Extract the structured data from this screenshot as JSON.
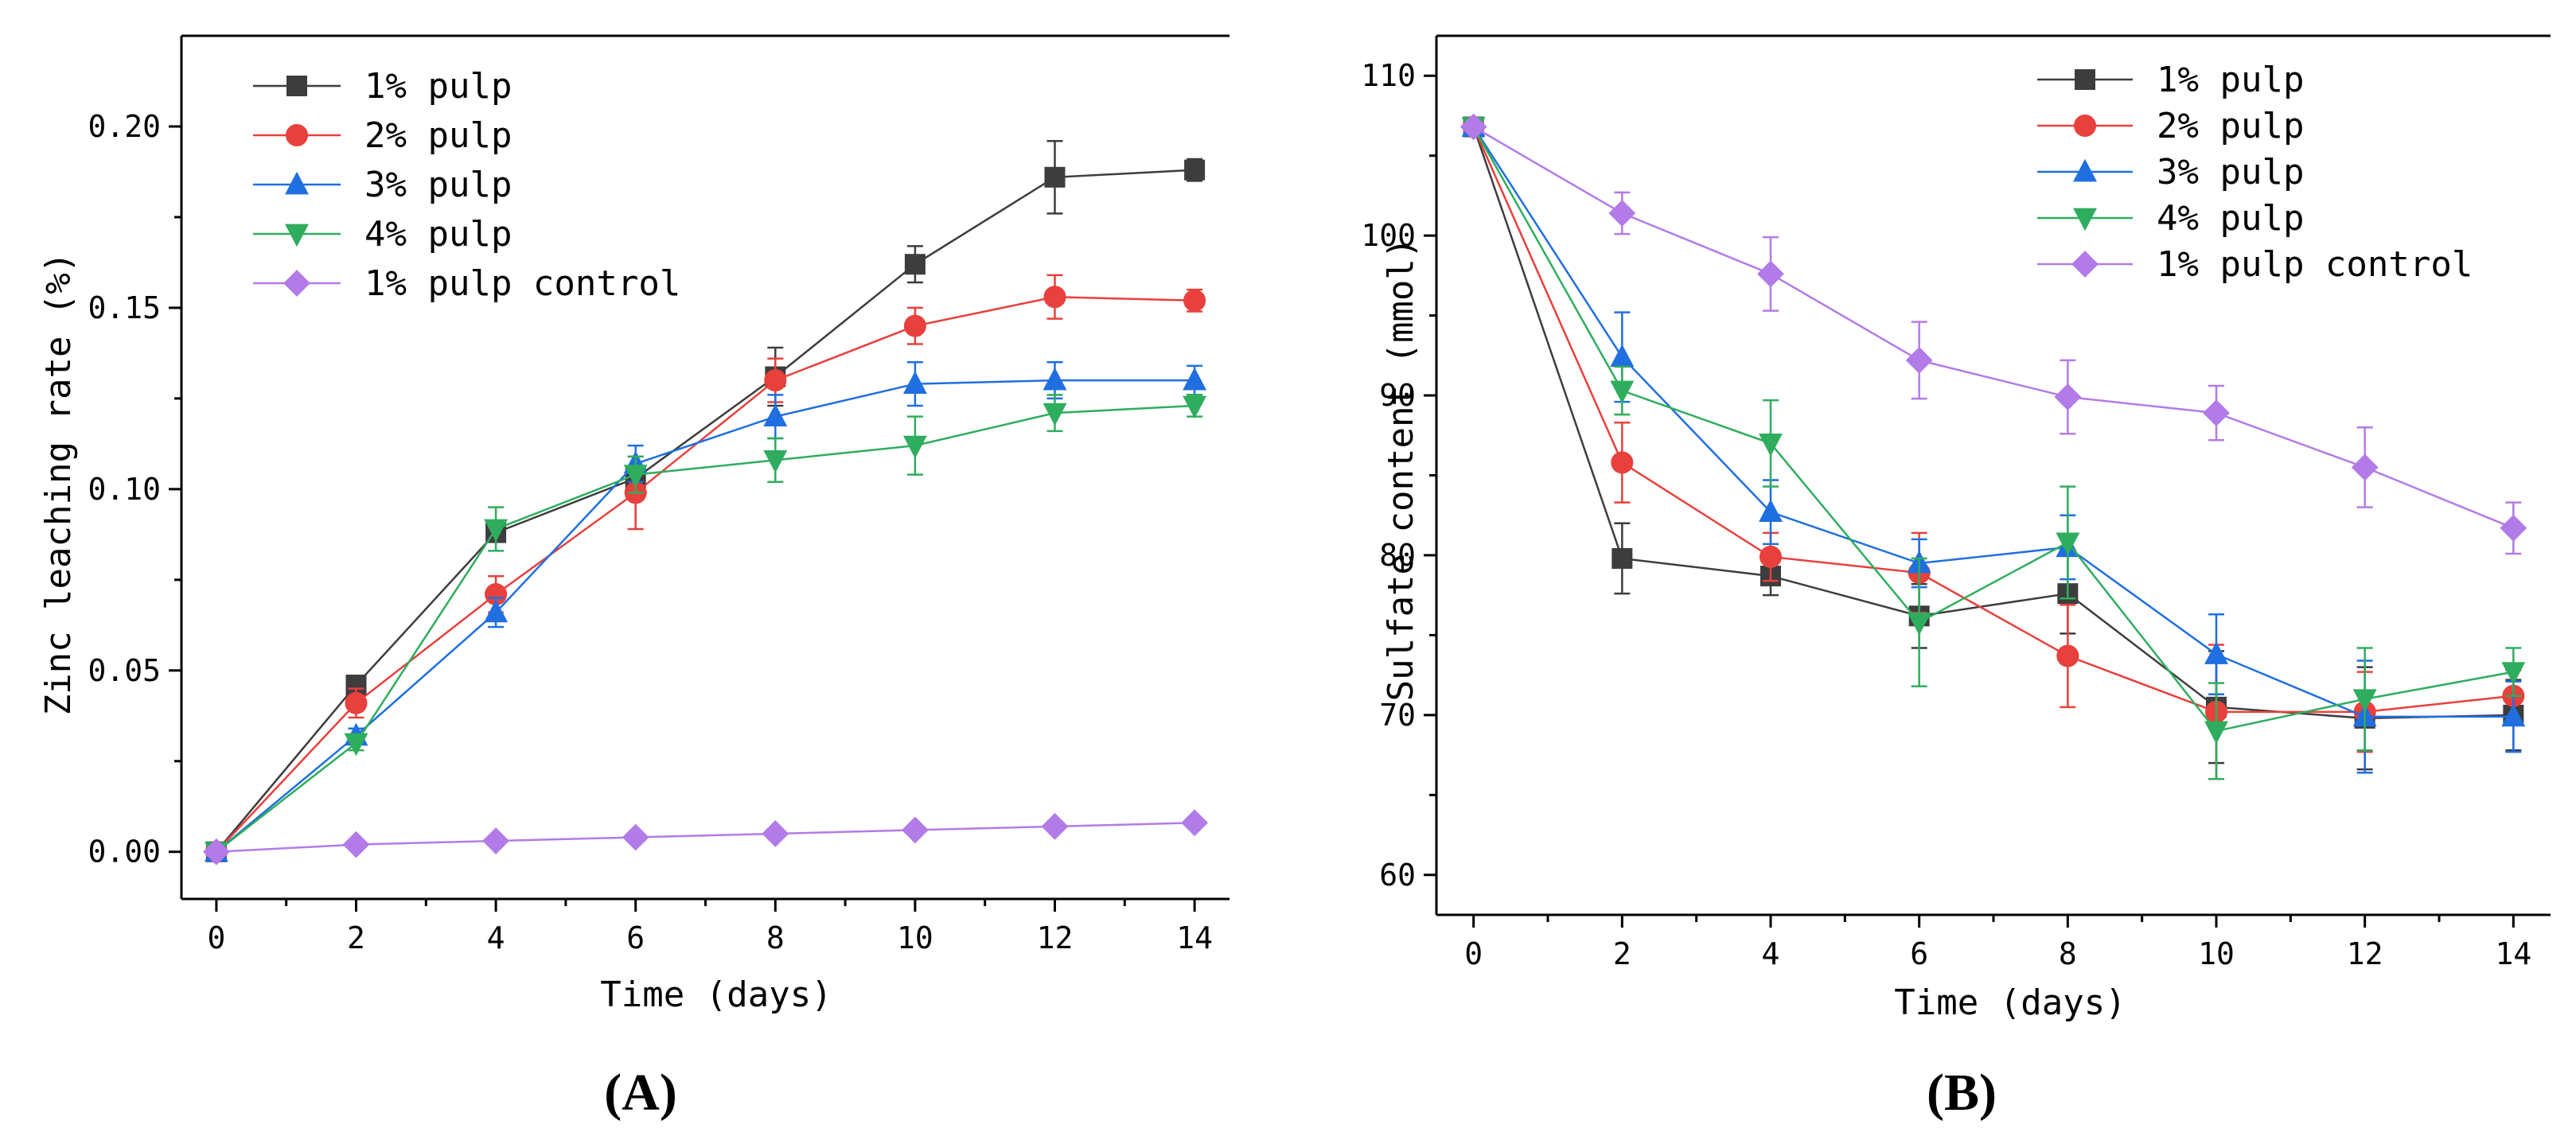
{
  "chart_data": [
    {
      "type": "line",
      "panel_label": "(A)",
      "xlabel": "Time (days)",
      "ylabel": "Zinc leaching rate (%)",
      "x": [
        0,
        2,
        4,
        6,
        8,
        10,
        12,
        14
      ],
      "xticks": [
        0,
        2,
        4,
        6,
        8,
        10,
        12,
        14
      ],
      "xlim": [
        -0.5,
        14.5
      ],
      "ylim": [
        -0.013,
        0.225
      ],
      "yticks": [
        0.0,
        0.05,
        0.1,
        0.15,
        0.2
      ],
      "ytick_labels": [
        "0.00",
        "0.05",
        "0.10",
        "0.15",
        "0.20"
      ],
      "legend_position": "top-left",
      "series": [
        {
          "name": "1% pulp",
          "color": "#3d3d3d",
          "marker": "square",
          "values": [
            0.0,
            0.046,
            0.088,
            0.103,
            0.131,
            0.162,
            0.186,
            0.188
          ],
          "errors": [
            0.0,
            0.002,
            0.002,
            0.003,
            0.008,
            0.005,
            0.01,
            0.003
          ]
        },
        {
          "name": "2% pulp",
          "color": "#e8403c",
          "marker": "circle",
          "values": [
            0.0,
            0.041,
            0.071,
            0.099,
            0.13,
            0.145,
            0.153,
            0.152
          ],
          "errors": [
            0.0,
            0.004,
            0.005,
            0.01,
            0.006,
            0.005,
            0.006,
            0.003
          ]
        },
        {
          "name": "3% pulp",
          "color": "#1f6fe0",
          "marker": "triangle-up",
          "values": [
            0.0,
            0.032,
            0.066,
            0.107,
            0.12,
            0.129,
            0.13,
            0.13
          ],
          "errors": [
            0.0,
            0.002,
            0.004,
            0.005,
            0.006,
            0.006,
            0.005,
            0.004
          ]
        },
        {
          "name": "4% pulp",
          "color": "#2fad5e",
          "marker": "triangle-down",
          "values": [
            0.0,
            0.03,
            0.089,
            0.104,
            0.108,
            0.112,
            0.121,
            0.123
          ],
          "errors": [
            0.0,
            0.002,
            0.006,
            0.005,
            0.006,
            0.008,
            0.005,
            0.003
          ]
        },
        {
          "name": "1% pulp control",
          "color": "#b27be8",
          "marker": "diamond",
          "values": [
            0.0,
            0.002,
            0.003,
            0.004,
            0.005,
            0.006,
            0.007,
            0.008
          ],
          "errors": [
            0,
            0,
            0,
            0,
            0,
            0,
            0,
            0
          ]
        }
      ]
    },
    {
      "type": "line",
      "panel_label": "(B)",
      "xlabel": "Time (days)",
      "ylabel": "Sulfate content (mmol)",
      "x": [
        0,
        2,
        4,
        6,
        8,
        10,
        12,
        14
      ],
      "xticks": [
        0,
        2,
        4,
        6,
        8,
        10,
        12,
        14
      ],
      "xlim": [
        -0.5,
        14.5
      ],
      "ylim": [
        57.5,
        112.5
      ],
      "yticks": [
        60,
        70,
        80,
        90,
        100,
        110
      ],
      "ytick_labels": [
        "60",
        "70",
        "80",
        "90",
        "100",
        "110"
      ],
      "legend_position": "top-right",
      "series": [
        {
          "name": "1% pulp",
          "color": "#3d3d3d",
          "marker": "square",
          "values": [
            106.8,
            79.8,
            78.7,
            76.2,
            77.6,
            70.5,
            69.8,
            70.0
          ],
          "errors": [
            0.0,
            2.2,
            1.2,
            2.0,
            2.5,
            3.5,
            3.2,
            2.2
          ]
        },
        {
          "name": "2% pulp",
          "color": "#e8403c",
          "marker": "circle",
          "values": [
            106.8,
            85.8,
            79.9,
            78.9,
            73.7,
            70.2,
            70.2,
            71.2
          ],
          "errors": [
            0.0,
            2.5,
            1.5,
            2.5,
            3.2,
            4.2,
            2.5,
            1.6
          ]
        },
        {
          "name": "3% pulp",
          "color": "#1f6fe0",
          "marker": "triangle-up",
          "values": [
            106.8,
            92.4,
            82.7,
            79.5,
            80.5,
            73.8,
            69.9,
            69.9
          ],
          "errors": [
            0.0,
            2.8,
            2.0,
            1.5,
            2.0,
            2.5,
            3.5,
            2.2
          ]
        },
        {
          "name": "4% pulp",
          "color": "#2fad5e",
          "marker": "triangle-down",
          "values": [
            106.8,
            90.3,
            87.0,
            75.8,
            80.8,
            69.0,
            71.0,
            72.7
          ],
          "errors": [
            0.0,
            1.5,
            2.7,
            4.0,
            3.5,
            3.0,
            3.2,
            1.5
          ]
        },
        {
          "name": "1% pulp control",
          "color": "#b27be8",
          "marker": "diamond",
          "values": [
            106.8,
            101.4,
            97.6,
            92.2,
            89.9,
            88.9,
            85.5,
            81.7
          ],
          "errors": [
            0.0,
            1.3,
            2.3,
            2.4,
            2.3,
            1.7,
            2.5,
            1.6
          ]
        }
      ]
    }
  ]
}
